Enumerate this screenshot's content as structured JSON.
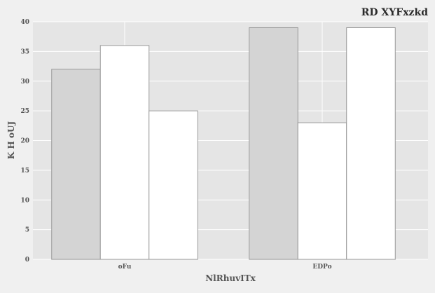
{
  "chart_data": {
    "type": "bar",
    "title": "RD XYFxzkd",
    "xlabel": "NlRhuvITx",
    "ylabel": "K H oUJ",
    "categories": [
      "oFu",
      "EDPo"
    ],
    "series": [
      {
        "values": [
          32,
          39
        ],
        "color": "#d4d4d4"
      },
      {
        "values": [
          36,
          23
        ],
        "color": "#ffffff"
      },
      {
        "values": [
          25,
          39
        ],
        "color": "#ffffff"
      }
    ],
    "ylim": [
      0,
      40
    ],
    "yticks": [
      0,
      5,
      10,
      15,
      20,
      25,
      30,
      35,
      40
    ],
    "grid": true,
    "legend": "none",
    "background": "#e5e5e5",
    "page_background": "#f0f0f0",
    "grid_color": "#ffffff",
    "bar_edge_color": "#999999"
  }
}
